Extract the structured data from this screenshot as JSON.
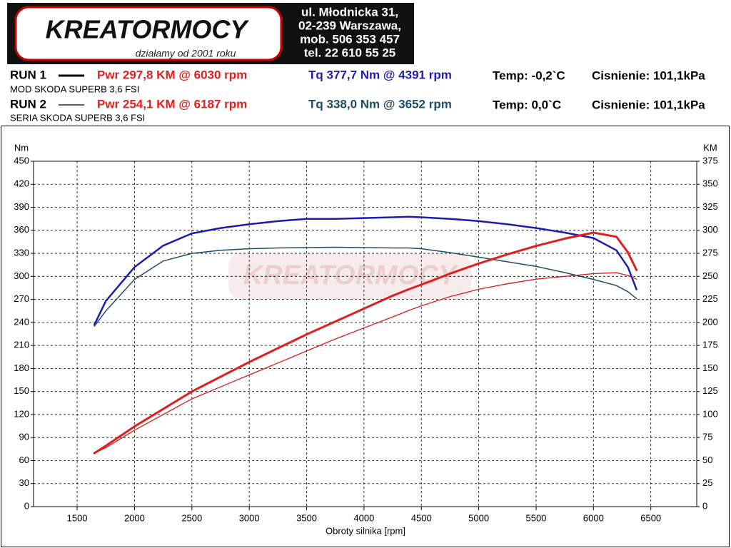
{
  "header": {
    "logo": "KREATORMOCY",
    "slogan": "działamy od 2001 roku",
    "address": [
      "ul. Młodnicka 31,",
      "02-239  Warszawa,",
      "mob.  506 353 457",
      "tel.  22 610 55 25"
    ]
  },
  "runs": [
    {
      "label": "RUN 1",
      "description": "MOD SKODA SUPERB 3,6 FSI",
      "power": "Pwr  297,8 KM @ 6030 rpm",
      "torque": "Tq 377,7 Nm @ 4391 rpm",
      "temp": "Temp: -0,2`C",
      "pressure": "Cisnienie: 101,1kPa"
    },
    {
      "label": "RUN 2",
      "description": "SERIA SKODA SUPERB 3,6 FSI",
      "power": "Pwr  254,1 KM @ 6187 rpm",
      "torque": "Tq 338,0 Nm @ 3652 rpm",
      "temp": "Temp: 0,0`C",
      "pressure": "Cisnienie: 101,1kPa"
    }
  ],
  "chart_data": {
    "type": "line",
    "x_label": "Obroty silnika [rpm]",
    "y_label": "Nm",
    "y2_label": "KM",
    "grid": true,
    "xlim": [
      1120,
      6900
    ],
    "xticks": [
      1500,
      2000,
      2500,
      3000,
      3500,
      4000,
      4500,
      5000,
      5500,
      6000,
      6500
    ],
    "ylim": [
      0,
      450
    ],
    "yticks": [
      0,
      30,
      60,
      90,
      120,
      150,
      180,
      210,
      240,
      270,
      300,
      330,
      360,
      390,
      420,
      450
    ],
    "y2lim": [
      0,
      375
    ],
    "y2ticks": [
      0,
      25,
      50,
      75,
      100,
      125,
      150,
      175,
      200,
      225,
      250,
      275,
      300,
      325,
      350,
      375
    ],
    "x": [
      1650,
      1750,
      2000,
      2250,
      2500,
      2750,
      3000,
      3250,
      3500,
      3750,
      4000,
      4250,
      4391,
      4500,
      4750,
      5000,
      5250,
      5500,
      5750,
      6000,
      6200,
      6300,
      6375
    ],
    "series": [
      {
        "color": "#1c1cb0",
        "line_width": 2.5,
        "values": [
          237,
          268,
          312,
          340,
          356,
          363,
          368,
          372,
          375,
          375,
          376,
          377,
          377.7,
          377,
          375,
          372,
          368,
          363,
          357,
          350,
          334,
          312,
          283
        ]
      },
      {
        "color": "#1e4d66",
        "line_width": 1.5,
        "values": [
          235,
          255,
          296,
          320,
          330,
          334,
          336,
          337,
          337.5,
          338,
          337.5,
          337,
          337,
          336,
          331,
          325,
          319,
          313,
          305,
          296,
          288,
          280,
          271
        ]
      },
      {
        "color": "#e01e1e",
        "line_width": 3,
        "axis": "y2",
        "values": [
          58,
          66,
          87,
          106,
          125,
          141,
          157,
          172,
          187,
          201,
          215,
          229,
          236,
          241,
          253,
          264,
          274,
          283,
          291,
          297.5,
          293,
          276,
          257
        ]
      },
      {
        "color": "#d02020",
        "line_width": 1.3,
        "axis": "y2",
        "values": [
          58,
          64,
          83,
          100,
          117,
          130,
          143,
          156,
          169,
          182,
          194,
          206,
          213,
          218,
          228,
          236,
          242,
          247,
          250,
          253,
          254,
          251,
          247
        ]
      }
    ]
  }
}
